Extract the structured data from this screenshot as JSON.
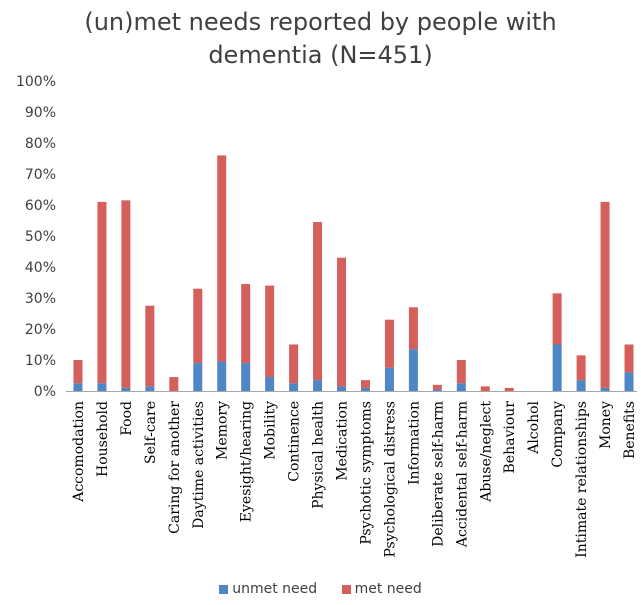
{
  "chart_data": {
    "type": "bar",
    "stacked": true,
    "title_lines": [
      "(un)met needs reported by people with",
      "dementia (N=451)"
    ],
    "categories": [
      "Accomodation",
      "Household",
      "Food",
      "Self-care",
      "Caring for another",
      "Daytime activities",
      "Memory",
      "Eyesight/hearing",
      "Mobility",
      "Continence",
      "Physical health",
      "Medication",
      "Psychotic symptoms",
      "Psychological distress",
      "Information",
      "Deliberate self-harm",
      "Accidental self-harm",
      "Abuse/neglect",
      "Behaviour",
      "Alcohol",
      "Company",
      "Intimate relationships",
      "Money",
      "Benefits"
    ],
    "series": [
      {
        "name": "unmet need",
        "color": "#4f87c6",
        "values": [
          2.5,
          2.5,
          1.0,
          1.5,
          0,
          9,
          9.5,
          9,
          4.5,
          2.5,
          3.5,
          1.5,
          1.0,
          7.5,
          13.5,
          0.5,
          2.5,
          0,
          0,
          0,
          15,
          3.5,
          1.0,
          6
        ]
      },
      {
        "name": "met need",
        "color": "#d45f5b",
        "values": [
          7.5,
          58.5,
          60.5,
          26,
          4.5,
          24,
          66.5,
          25.5,
          29.5,
          12.5,
          51,
          41.5,
          2.5,
          15.5,
          13.5,
          1.5,
          7.5,
          1.5,
          1.0,
          0,
          16.5,
          8,
          60,
          9
        ]
      }
    ],
    "yticks": [
      "0%",
      "10%",
      "20%",
      "30%",
      "40%",
      "50%",
      "60%",
      "70%",
      "80%",
      "90%",
      "100%"
    ],
    "ylim": [
      0,
      100
    ],
    "legend_position": "bottom",
    "grid": false
  }
}
